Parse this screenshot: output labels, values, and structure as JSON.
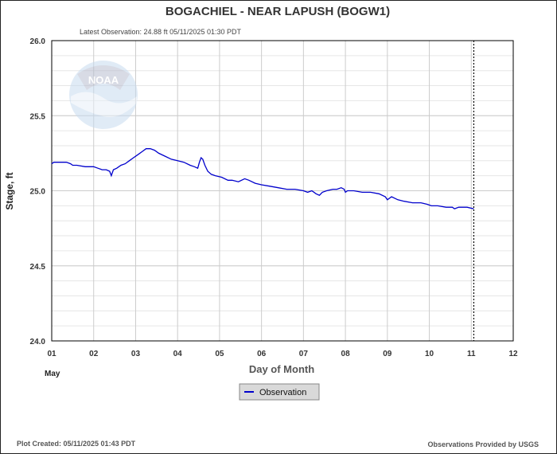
{
  "header": {
    "title": "BOGACHIEL - NEAR LAPUSH  (BOGW1)",
    "latest": "Latest Observation:  24.88 ft 05/11/2025 01:30 PDT"
  },
  "footer": {
    "created": "Plot Created:  05/11/2025 01:43 PDT",
    "provider": "Observations Provided by USGS"
  },
  "logo": {
    "text": "NOAA"
  },
  "colors": {
    "series": "#0000cc",
    "grid": "#cccccc",
    "minor_grid": "#e6e6e6",
    "legend_bg": "#d9d9d9"
  },
  "chart_data": {
    "type": "line",
    "title": "BOGACHIEL - NEAR LAPUSH  (BOGW1)",
    "xlabel": "Day of Month",
    "xlabel_sub": "May",
    "ylabel": "Stage, ft",
    "xlim": [
      1,
      12
    ],
    "ylim": [
      24.0,
      26.0
    ],
    "x_ticks": [
      "01",
      "02",
      "03",
      "04",
      "05",
      "06",
      "07",
      "08",
      "09",
      "10",
      "11",
      "12"
    ],
    "y_ticks": [
      "24.0",
      "24.5",
      "25.0",
      "25.5",
      "26.0"
    ],
    "latest_obs_x": 11.06,
    "legend": {
      "position": "bottom-center",
      "entries": [
        "Observation"
      ]
    },
    "series": [
      {
        "name": "Observation",
        "x": [
          1.0,
          1.05,
          1.2,
          1.35,
          1.45,
          1.5,
          1.6,
          1.8,
          2.0,
          2.1,
          2.2,
          2.3,
          2.38,
          2.42,
          2.47,
          2.55,
          2.65,
          2.75,
          2.85,
          2.95,
          3.05,
          3.15,
          3.25,
          3.35,
          3.45,
          3.55,
          3.7,
          3.85,
          4.0,
          4.15,
          4.3,
          4.4,
          4.48,
          4.52,
          4.56,
          4.6,
          4.65,
          4.72,
          4.8,
          4.9,
          5.05,
          5.2,
          5.3,
          5.45,
          5.6,
          5.7,
          5.85,
          6.0,
          6.2,
          6.4,
          6.6,
          6.8,
          7.0,
          7.1,
          7.2,
          7.3,
          7.38,
          7.45,
          7.55,
          7.7,
          7.8,
          7.9,
          7.97,
          8.0,
          8.05,
          8.2,
          8.4,
          8.6,
          8.8,
          8.95,
          9.0,
          9.1,
          9.25,
          9.4,
          9.6,
          9.8,
          9.95,
          10.05,
          10.2,
          10.4,
          10.55,
          10.6,
          10.7,
          10.9,
          11.06
        ],
        "y": [
          25.18,
          25.19,
          25.19,
          25.19,
          25.18,
          25.17,
          25.17,
          25.16,
          25.16,
          25.15,
          25.14,
          25.14,
          25.13,
          25.1,
          25.14,
          25.15,
          25.17,
          25.18,
          25.2,
          25.22,
          25.24,
          25.26,
          25.28,
          25.28,
          25.27,
          25.25,
          25.23,
          25.21,
          25.2,
          25.19,
          25.17,
          25.16,
          25.15,
          25.19,
          25.22,
          25.21,
          25.17,
          25.13,
          25.11,
          25.1,
          25.09,
          25.07,
          25.07,
          25.06,
          25.08,
          25.07,
          25.05,
          25.04,
          25.03,
          25.02,
          25.01,
          25.01,
          25.0,
          24.99,
          25.0,
          24.98,
          24.97,
          24.99,
          25.0,
          25.01,
          25.01,
          25.02,
          25.01,
          24.99,
          25.0,
          25.0,
          24.99,
          24.99,
          24.98,
          24.96,
          24.94,
          24.96,
          24.94,
          24.93,
          24.92,
          24.92,
          24.91,
          24.9,
          24.9,
          24.89,
          24.89,
          24.88,
          24.89,
          24.89,
          24.88
        ]
      }
    ]
  }
}
